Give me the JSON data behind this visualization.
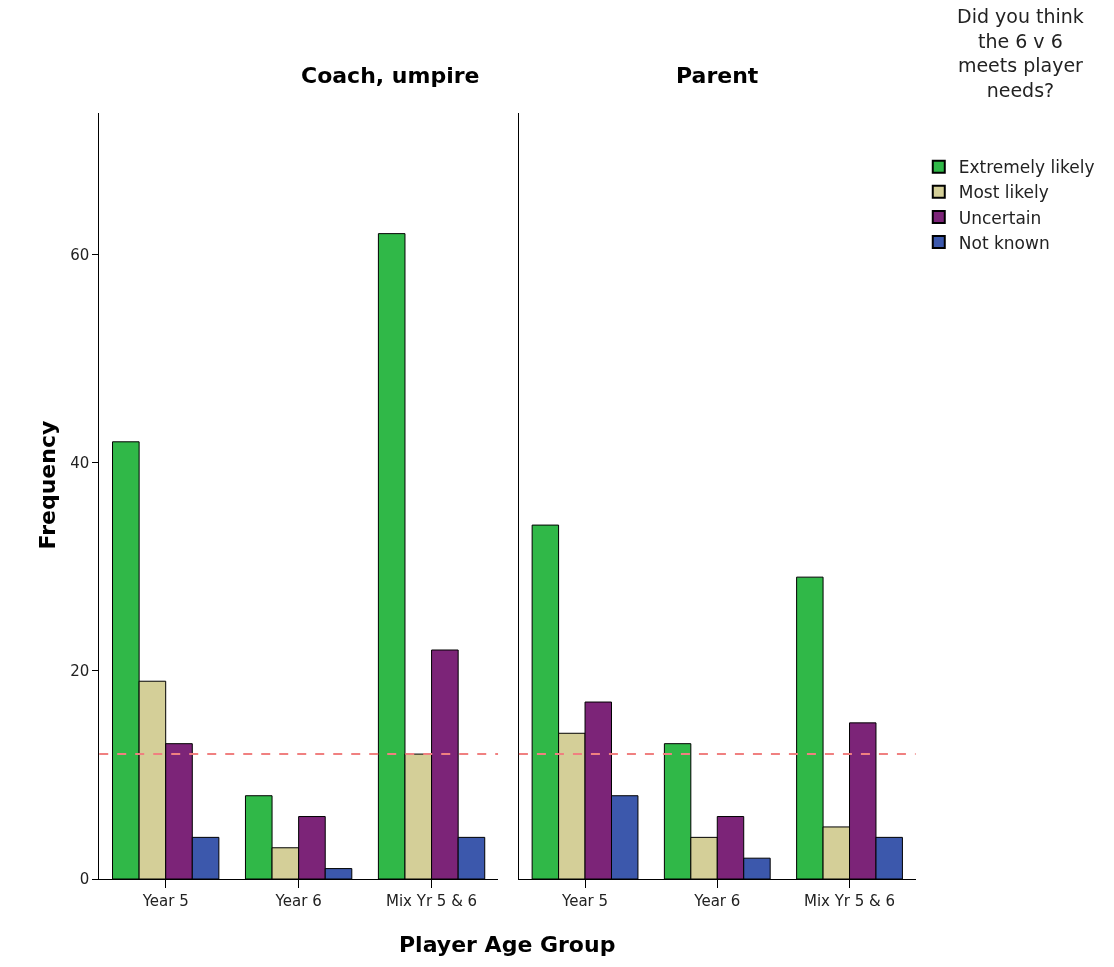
{
  "chart_data": [
    {
      "type": "bar",
      "title": "Coach, umpire",
      "xlabel": "Player Age Group",
      "ylabel": "Frequency",
      "categories": [
        "Year 5",
        "Year 6",
        "Mix Yr 5 & 6"
      ],
      "series": [
        {
          "name": "Extremely likely",
          "color": "#30b848",
          "values": [
            42,
            8,
            62
          ]
        },
        {
          "name": "Most likely",
          "color": "#d4cf98",
          "values": [
            19,
            3,
            12
          ]
        },
        {
          "name": "Uncertain",
          "color": "#7c2478",
          "values": [
            13,
            6,
            22
          ]
        },
        {
          "name": "Not known",
          "color": "#3c58ac",
          "values": [
            4,
            1,
            4
          ]
        }
      ],
      "ylim": [
        0,
        73.6
      ],
      "yticks": [
        0,
        20,
        40,
        60
      ],
      "grid": false,
      "legend": "right",
      "legend_title": "Did you think\nthe 6 v 6\nmeets player\nneeds?",
      "ref_lines": [
        {
          "axis": "y",
          "value": 12,
          "color": "#f08080",
          "line_style": "dashed"
        }
      ]
    },
    {
      "type": "bar",
      "title": "Parent",
      "categories": [
        "Year 5",
        "Year 6",
        "Mix Yr 5 & 6"
      ],
      "series": [
        {
          "color": "#30b848",
          "values": [
            34,
            13,
            29
          ]
        },
        {
          "color": "#d4cf98",
          "values": [
            14,
            4,
            5
          ]
        },
        {
          "color": "#7c2478",
          "values": [
            17,
            6,
            15
          ]
        },
        {
          "color": "#3c58ac",
          "values": [
            8,
            2,
            4
          ]
        }
      ],
      "ylim": [
        0,
        73.6
      ],
      "yticks": [
        0,
        20,
        40,
        60
      ],
      "grid": false,
      "tick_labels": "x",
      "ref_lines": [
        {
          "axis": "y",
          "value": 12,
          "color": "#f08080",
          "line_style": "dashed"
        }
      ]
    }
  ]
}
